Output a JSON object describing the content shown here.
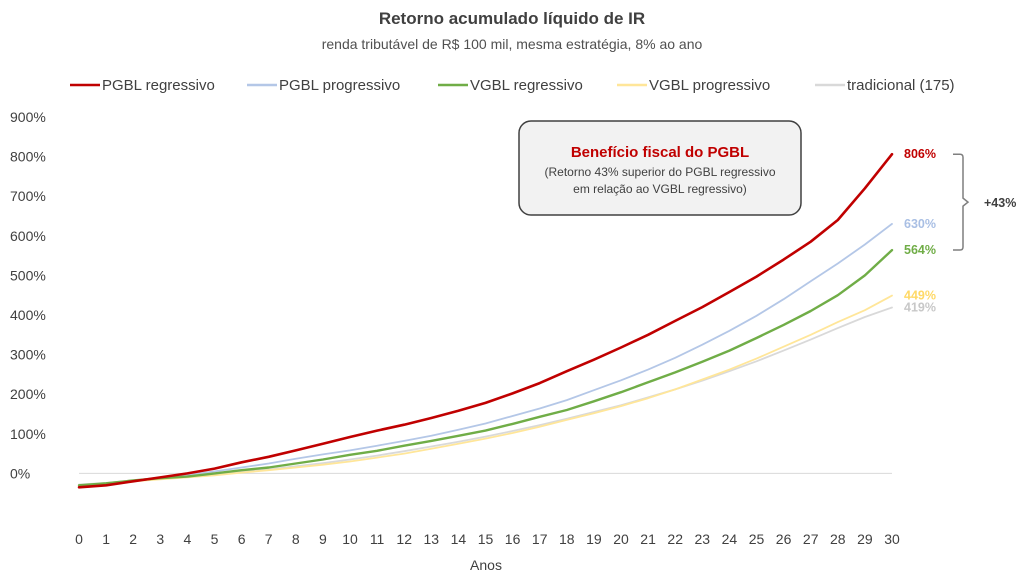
{
  "chart_data": {
    "type": "line",
    "title": "Retorno acumulado líquido de IR",
    "subtitle": "renda tributável de R$ 100 mil, mesma estratégia, 8% ao ano",
    "xlabel": "Anos",
    "ylabel": "",
    "x": [
      0,
      1,
      2,
      3,
      4,
      5,
      6,
      7,
      8,
      9,
      10,
      11,
      12,
      13,
      14,
      15,
      16,
      17,
      18,
      19,
      20,
      21,
      22,
      23,
      24,
      25,
      26,
      27,
      28,
      29,
      30
    ],
    "ylim": [
      -100,
      900
    ],
    "yticks": [
      0,
      100,
      200,
      300,
      400,
      500,
      600,
      700,
      800,
      900
    ],
    "ytick_labels": [
      "0%",
      "100%",
      "200%",
      "300%",
      "400%",
      "500%",
      "600%",
      "700%",
      "800%",
      "900%"
    ],
    "grid": false,
    "legend_position": "top",
    "series": [
      {
        "name": "PGBL regressivo",
        "color": "#c00000",
        "width": 2.6,
        "end_label": "806%",
        "label_color": "#c00000",
        "values": [
          -35,
          -30,
          -20,
          -10,
          0,
          12,
          28,
          42,
          58,
          75,
          92,
          108,
          123,
          140,
          158,
          178,
          202,
          228,
          258,
          287,
          318,
          350,
          385,
          420,
          458,
          497,
          540,
          585,
          640,
          720,
          806
        ]
      },
      {
        "name": "PGBL progressivo",
        "color": "#b4c7e7",
        "width": 1.8,
        "end_label": "630%",
        "label_color": "#a9bfe4",
        "values": [
          -30,
          -25,
          -18,
          -10,
          -4,
          5,
          15,
          25,
          37,
          48,
          58,
          70,
          82,
          95,
          110,
          126,
          145,
          164,
          185,
          210,
          235,
          262,
          292,
          325,
          360,
          398,
          440,
          485,
          530,
          578,
          630
        ]
      },
      {
        "name": "VGBL regressivo",
        "color": "#70ad47",
        "width": 2.4,
        "end_label": "564%",
        "label_color": "#70ad47",
        "values": [
          -30,
          -25,
          -18,
          -12,
          -8,
          0,
          8,
          15,
          25,
          35,
          47,
          57,
          70,
          82,
          95,
          108,
          125,
          143,
          160,
          182,
          205,
          230,
          255,
          282,
          310,
          342,
          375,
          410,
          450,
          500,
          564
        ]
      },
      {
        "name": "VGBL progressivo",
        "color": "#ffe699",
        "width": 1.8,
        "end_label": "449%",
        "label_color": "#ffd966",
        "values": [
          -30,
          -26,
          -20,
          -15,
          -10,
          -5,
          2,
          8,
          15,
          22,
          30,
          40,
          50,
          62,
          75,
          88,
          102,
          118,
          135,
          152,
          170,
          190,
          212,
          237,
          262,
          290,
          320,
          350,
          382,
          412,
          449
        ]
      },
      {
        "name": "tradicional (175)",
        "color": "#d9d9d9",
        "width": 1.8,
        "end_label": "419%",
        "label_color": "#c8c8c8",
        "values": [
          -28,
          -24,
          -18,
          -12,
          -8,
          -2,
          4,
          10,
          18,
          26,
          35,
          45,
          56,
          68,
          80,
          93,
          107,
          122,
          138,
          155,
          172,
          192,
          212,
          234,
          258,
          283,
          310,
          338,
          367,
          395,
          419
        ]
      }
    ],
    "annotations": {
      "callout_title": "Benefício fiscal do PGBL",
      "callout_line1": "(Retorno 43% superior do PGBL regressivo",
      "callout_line2": "em relação ao VGBL regressivo)",
      "difference_label": "+43%",
      "bracket_from": 806,
      "bracket_to": 564
    }
  }
}
